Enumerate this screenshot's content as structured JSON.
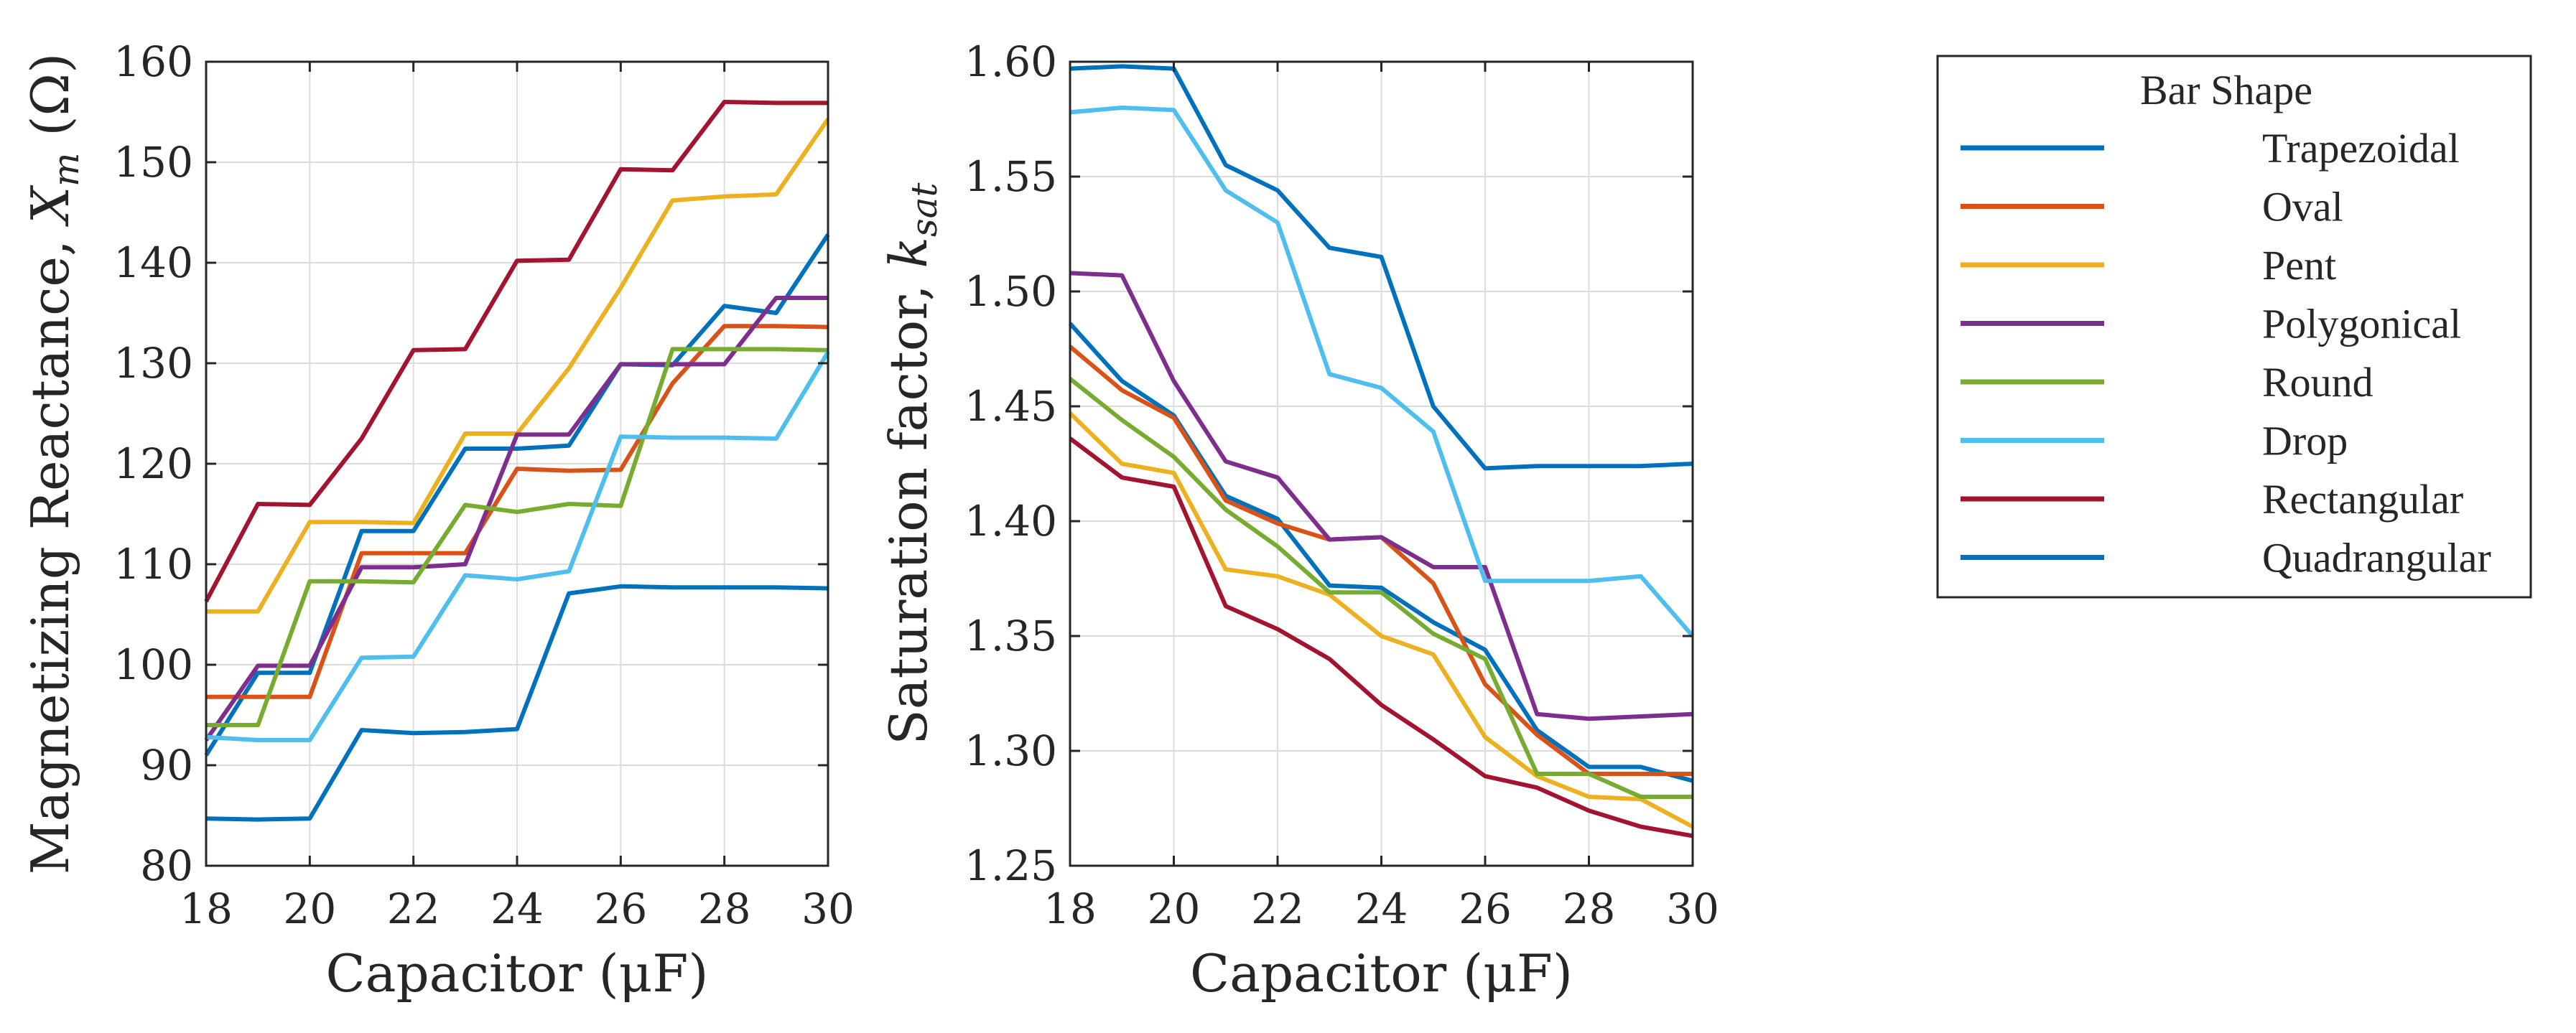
{
  "chart_data": [
    {
      "type": "line",
      "xlabel": "Capacitor (μF)",
      "ylabel": "Magnetizing Reactance, Xm (Ω)",
      "ylabel_main": "Magnetizing Reactance, ",
      "ylabel_var": "X",
      "ylabel_sub": "m",
      "ylabel_unit": " (Ω)",
      "xlim": [
        18,
        30
      ],
      "ylim": [
        80,
        160
      ],
      "xticks": [
        18,
        20,
        22,
        24,
        26,
        28,
        30
      ],
      "yticks": [
        80,
        90,
        100,
        110,
        120,
        130,
        140,
        150,
        160
      ],
      "grid": true,
      "x": [
        18,
        19,
        20,
        21,
        22,
        23,
        24,
        25,
        26,
        27,
        28,
        29,
        30
      ],
      "series": [
        {
          "name": "Trapezoidal",
          "values": [
            91,
            99.2,
            99.2,
            113.3,
            113.3,
            121.5,
            121.5,
            121.8,
            129.9,
            129.8,
            135.7,
            135.0,
            142.8
          ]
        },
        {
          "name": "Oval",
          "values": [
            96.8,
            96.8,
            96.8,
            111.1,
            111.1,
            111.1,
            119.5,
            119.3,
            119.4,
            128.0,
            133.7,
            133.7,
            133.6
          ]
        },
        {
          "name": "Pent",
          "values": [
            105.3,
            105.3,
            114.2,
            114.2,
            114.1,
            123.0,
            123.0,
            129.5,
            137.5,
            146.2,
            146.6,
            146.8,
            154.3
          ]
        },
        {
          "name": "Polygonical",
          "values": [
            92.5,
            99.9,
            99.9,
            109.7,
            109.7,
            110.0,
            122.9,
            122.9,
            129.9,
            129.9,
            129.9,
            136.5,
            136.5
          ]
        },
        {
          "name": "Round",
          "values": [
            94.0,
            94.0,
            108.3,
            108.3,
            108.2,
            115.9,
            115.2,
            116.0,
            115.8,
            131.4,
            131.4,
            131.4,
            131.3
          ]
        },
        {
          "name": "Drop",
          "values": [
            92.8,
            92.5,
            92.5,
            100.7,
            100.8,
            108.9,
            108.5,
            109.3,
            122.7,
            122.6,
            122.6,
            122.5,
            131.1
          ]
        },
        {
          "name": "Rectangular",
          "values": [
            106.3,
            116.0,
            115.9,
            122.5,
            131.3,
            131.4,
            140.2,
            140.3,
            149.3,
            149.2,
            156.0,
            155.9,
            155.9
          ]
        },
        {
          "name": "Quadrangular",
          "values": [
            84.7,
            84.6,
            84.7,
            93.5,
            93.2,
            93.3,
            93.6,
            107.1,
            107.8,
            107.7,
            107.7,
            107.7,
            107.6
          ]
        }
      ]
    },
    {
      "type": "line",
      "xlabel": "Capacitor (μF)",
      "ylabel": "Saturation factor, ksat",
      "ylabel_main": "Saturation factor, ",
      "ylabel_var": "k",
      "ylabel_sub": "sat",
      "ylabel_unit": "",
      "xlim": [
        18,
        30
      ],
      "ylim": [
        1.25,
        1.6
      ],
      "xticks": [
        18,
        20,
        22,
        24,
        26,
        28,
        30
      ],
      "yticks": [
        "1.25",
        "1.30",
        "1.35",
        "1.40",
        "1.45",
        "1.50",
        "1.55",
        "1.60"
      ],
      "grid": true,
      "x": [
        18,
        19,
        20,
        21,
        22,
        23,
        24,
        25,
        26,
        27,
        28,
        29,
        30
      ],
      "series": [
        {
          "name": "Trapezoidal",
          "values": [
            1.486,
            1.461,
            1.446,
            1.411,
            1.401,
            1.372,
            1.371,
            1.356,
            1.344,
            1.309,
            1.293,
            1.293,
            1.287
          ]
        },
        {
          "name": "Oval",
          "values": [
            1.476,
            1.457,
            1.445,
            1.409,
            1.399,
            1.392,
            1.393,
            1.373,
            1.329,
            1.307,
            1.29,
            1.29,
            1.29
          ]
        },
        {
          "name": "Pent",
          "values": [
            1.447,
            1.425,
            1.421,
            1.379,
            1.376,
            1.368,
            1.35,
            1.342,
            1.306,
            1.289,
            1.28,
            1.279,
            1.267
          ]
        },
        {
          "name": "Polygonical",
          "values": [
            1.508,
            1.507,
            1.461,
            1.426,
            1.419,
            1.392,
            1.393,
            1.38,
            1.38,
            1.316,
            1.314,
            1.315,
            1.316
          ]
        },
        {
          "name": "Round",
          "values": [
            1.462,
            1.444,
            1.428,
            1.405,
            1.389,
            1.369,
            1.369,
            1.351,
            1.34,
            1.29,
            1.29,
            1.28,
            1.28
          ]
        },
        {
          "name": "Drop",
          "values": [
            1.578,
            1.58,
            1.579,
            1.544,
            1.53,
            1.464,
            1.458,
            1.439,
            1.374,
            1.374,
            1.374,
            1.376,
            1.35
          ]
        },
        {
          "name": "Rectangular",
          "values": [
            1.436,
            1.419,
            1.415,
            1.363,
            1.353,
            1.34,
            1.32,
            1.305,
            1.289,
            1.284,
            1.274,
            1.267,
            1.263
          ]
        },
        {
          "name": "Quadrangular",
          "values": [
            1.597,
            1.598,
            1.597,
            1.555,
            1.544,
            1.519,
            1.515,
            1.45,
            1.423,
            1.424,
            1.424,
            1.424,
            1.425
          ]
        }
      ]
    }
  ],
  "legend": {
    "title": "Bar Shape",
    "entries": [
      "Trapezoidal",
      "Oval",
      "Pent",
      "Polygonical",
      "Round",
      "Drop",
      "Rectangular",
      "Quadrangular"
    ]
  },
  "colors": {
    "Trapezoidal": "#0072BD",
    "Oval": "#D95319",
    "Pent": "#EDB120",
    "Polygonical": "#7E2F8E",
    "Round": "#77AC30",
    "Drop": "#4DBEEE",
    "Rectangular": "#A2142F",
    "Quadrangular": "#0072BD"
  }
}
